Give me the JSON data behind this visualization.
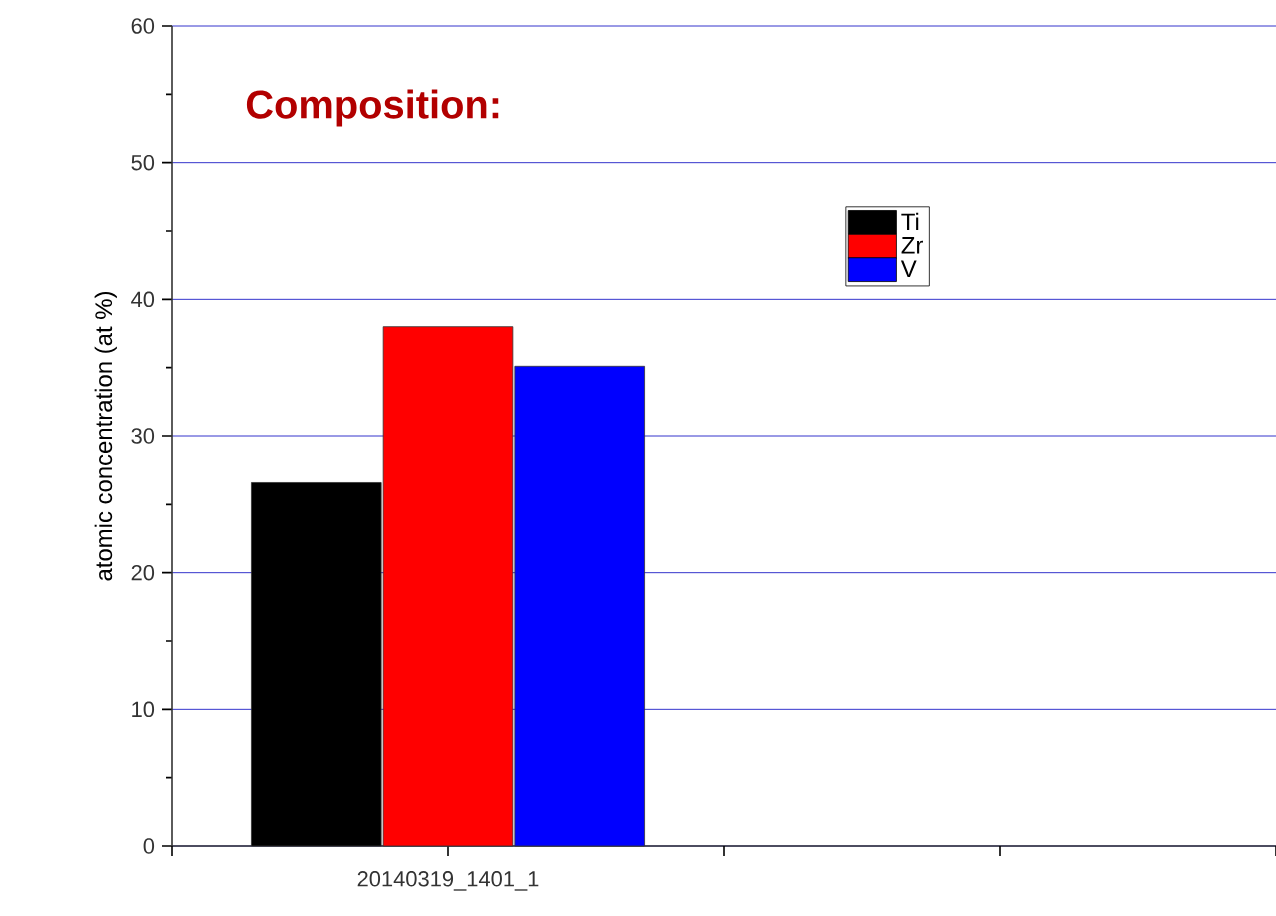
{
  "chart_data": {
    "type": "bar",
    "title": "Composition:",
    "ylabel": "atomic concentration (at %)",
    "categories": [
      "20140319_1401_1"
    ],
    "series": [
      {
        "name": "Ti",
        "color": "#000000",
        "values": [
          26.6
        ]
      },
      {
        "name": "Zr",
        "color": "#ff0000",
        "values": [
          38.0
        ]
      },
      {
        "name": "V",
        "color": "#0000ff",
        "values": [
          35.1
        ]
      }
    ],
    "ylim": [
      0,
      60
    ],
    "yticks": [
      0,
      10,
      20,
      30,
      40,
      50,
      60
    ],
    "grid": "y",
    "legend": "top right"
  }
}
